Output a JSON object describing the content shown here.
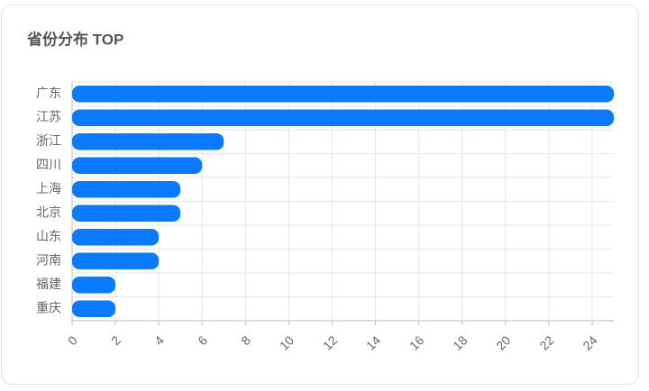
{
  "chart_data": {
    "type": "hbar",
    "title": "省份分布 TOP",
    "categories": [
      "广东",
      "江苏",
      "浙江",
      "四川",
      "上海",
      "北京",
      "山东",
      "河南",
      "福建",
      "重庆"
    ],
    "values": [
      25,
      25,
      7,
      6,
      5,
      5,
      4,
      4,
      2,
      2
    ],
    "color": "#0a7bff",
    "xlim": [
      0,
      25
    ],
    "xticks": [
      0,
      2,
      4,
      6,
      8,
      10,
      12,
      14,
      16,
      18,
      20,
      22,
      24
    ],
    "grid": true
  }
}
